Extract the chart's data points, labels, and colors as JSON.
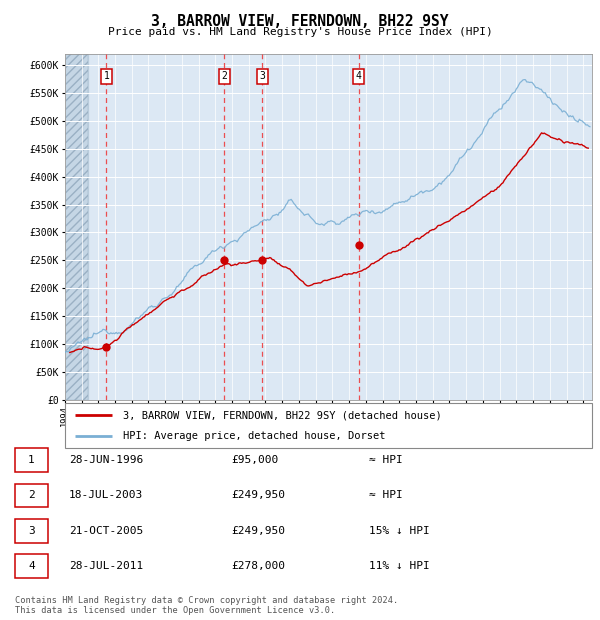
{
  "title": "3, BARROW VIEW, FERNDOWN, BH22 9SY",
  "subtitle": "Price paid vs. HM Land Registry's House Price Index (HPI)",
  "ylabel_ticks": [
    "£0",
    "£50K",
    "£100K",
    "£150K",
    "£200K",
    "£250K",
    "£300K",
    "£350K",
    "£400K",
    "£450K",
    "£500K",
    "£550K",
    "£600K"
  ],
  "ytick_values": [
    0,
    50000,
    100000,
    150000,
    200000,
    250000,
    300000,
    350000,
    400000,
    450000,
    500000,
    550000,
    600000
  ],
  "xlim_start": 1994.0,
  "xlim_end": 2025.5,
  "ylim_min": 0,
  "ylim_max": 620000,
  "sales": [
    {
      "label": "1",
      "date": 1996.49,
      "price": 95000
    },
    {
      "label": "2",
      "date": 2003.54,
      "price": 249950
    },
    {
      "label": "3",
      "date": 2005.8,
      "price": 249950
    },
    {
      "label": "4",
      "date": 2011.57,
      "price": 278000
    }
  ],
  "legend_line1": "3, BARROW VIEW, FERNDOWN, BH22 9SY (detached house)",
  "legend_line2": "HPI: Average price, detached house, Dorset",
  "table_rows": [
    {
      "num": "1",
      "date": "28-JUN-1996",
      "price": "£95,000",
      "rel": "≈ HPI"
    },
    {
      "num": "2",
      "date": "18-JUL-2003",
      "price": "£249,950",
      "rel": "≈ HPI"
    },
    {
      "num": "3",
      "date": "21-OCT-2005",
      "price": "£249,950",
      "rel": "15% ↓ HPI"
    },
    {
      "num": "4",
      "date": "28-JUL-2011",
      "price": "£278,000",
      "rel": "11% ↓ HPI"
    }
  ],
  "footer": "Contains HM Land Registry data © Crown copyright and database right 2024.\nThis data is licensed under the Open Government Licence v3.0.",
  "plot_bg": "#dce8f4",
  "grid_color": "#ffffff",
  "red_line_color": "#cc0000",
  "blue_line_color": "#7aafd4",
  "sale_dot_color": "#cc0000",
  "vline_color": "#ee3333",
  "number_box_color": "#cc0000",
  "hatch_color": "#bccfdf"
}
